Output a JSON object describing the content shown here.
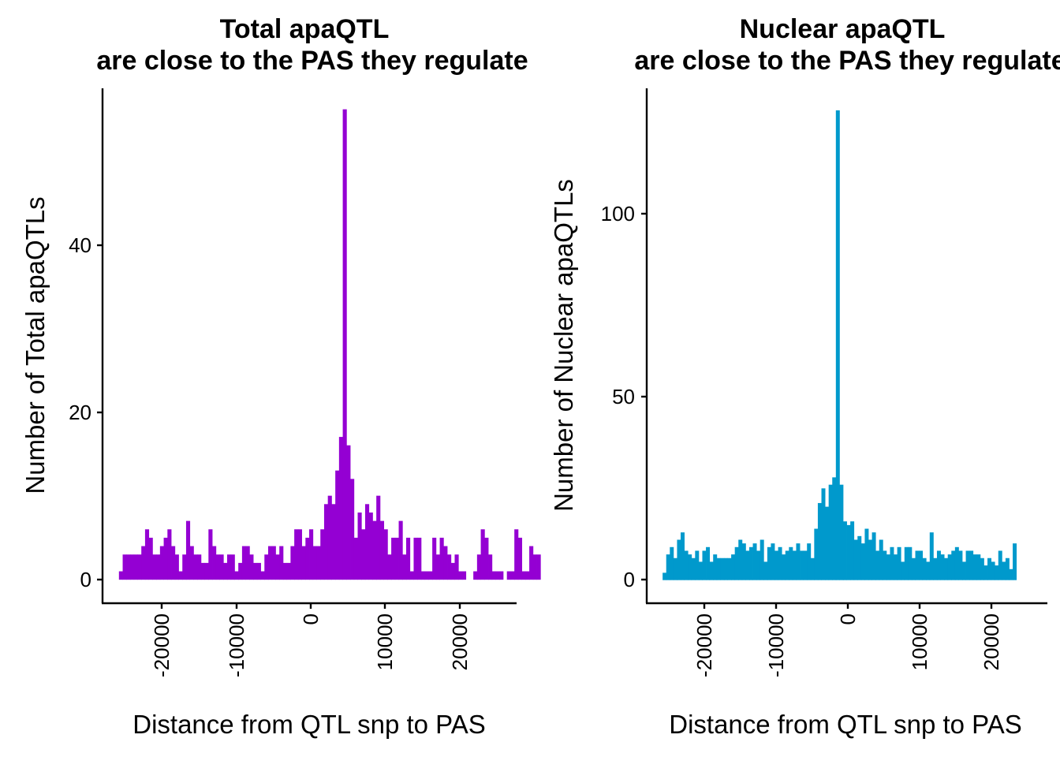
{
  "chart_data": [
    {
      "type": "bar",
      "title_lines": [
        "Total apaQTL",
        "are close to the PAS they regulate"
      ],
      "xlabel": "Distance from QTL snp to PAS",
      "ylabel": "Number of Total apaQTLs",
      "x_ticks": [
        -20000,
        -10000,
        0,
        10000,
        20000
      ],
      "x_tick_labels": [
        "-20000",
        "-10000",
        "0",
        "10000",
        "20000"
      ],
      "y_ticks": [
        0,
        20,
        40
      ],
      "y_tick_labels": [
        "0",
        "20",
        "40"
      ],
      "xlim": [
        -28000,
        27500
      ],
      "ylim": [
        -2.8,
        58.5
      ],
      "grid": false,
      "color": "#9400D3",
      "bin_start": -25800,
      "bin_width": 500,
      "values": [
        1,
        3,
        3,
        3,
        3,
        3,
        4,
        6,
        5,
        3,
        3,
        4,
        5,
        6,
        4,
        3,
        1,
        3,
        7,
        4,
        3,
        3,
        2,
        2,
        6,
        4,
        3,
        3,
        2,
        3,
        3,
        1,
        2,
        4,
        4,
        3,
        2,
        2,
        1,
        3,
        4,
        4,
        3,
        4,
        2,
        2,
        4,
        6,
        6,
        4,
        5,
        6,
        4,
        4,
        6,
        9,
        10,
        9,
        13,
        17,
        56,
        16,
        12,
        5,
        8,
        6,
        9,
        8,
        7,
        10,
        7,
        6,
        3,
        5,
        5,
        7,
        3,
        5,
        1,
        5,
        5,
        1,
        1,
        1,
        5,
        3,
        5,
        4,
        3,
        2,
        3,
        1,
        1,
        0,
        0,
        1,
        3,
        6,
        5,
        3,
        1,
        1,
        1,
        0,
        1,
        1,
        6,
        5,
        1,
        1,
        4,
        3,
        3
      ]
    },
    {
      "type": "bar",
      "title_lines": [
        "Nuclear apaQTL",
        "are close to the PAS they regulate"
      ],
      "xlabel": "Distance from QTL snp to PAS",
      "ylabel": "Number of Nuclear apaQTLs",
      "x_ticks": [
        -20000,
        -10000,
        0,
        10000,
        20000
      ],
      "x_tick_labels": [
        "-20000",
        "-10000",
        "0",
        "10000",
        "20000"
      ],
      "y_ticks": [
        0,
        50,
        100
      ],
      "y_tick_labels": [
        "0",
        "50",
        "100"
      ],
      "xlim": [
        -28000,
        27500
      ],
      "ylim": [
        -6.3,
        134
      ],
      "grid": false,
      "color": "#0099CC",
      "bin_start": -25800,
      "bin_width": 500,
      "values": [
        2,
        7,
        9,
        6,
        11,
        13,
        8,
        7,
        6,
        8,
        5,
        8,
        9,
        5,
        7,
        6,
        6,
        6,
        6,
        7,
        9,
        11,
        10,
        8,
        9,
        10,
        8,
        11,
        5,
        9,
        10,
        8,
        9,
        7,
        8,
        9,
        8,
        10,
        8,
        8,
        10,
        6,
        14,
        21,
        25,
        20,
        26,
        28,
        128,
        26,
        16,
        15,
        16,
        11,
        12,
        10,
        14,
        11,
        13,
        8,
        11,
        8,
        7,
        9,
        7,
        9,
        5,
        9,
        9,
        6,
        8,
        8,
        6,
        5,
        13,
        6,
        8,
        7,
        6,
        7,
        8,
        9,
        8,
        5,
        8,
        8,
        7,
        7,
        6,
        4,
        6,
        5,
        4,
        8,
        5,
        6,
        3,
        10
      ]
    }
  ]
}
